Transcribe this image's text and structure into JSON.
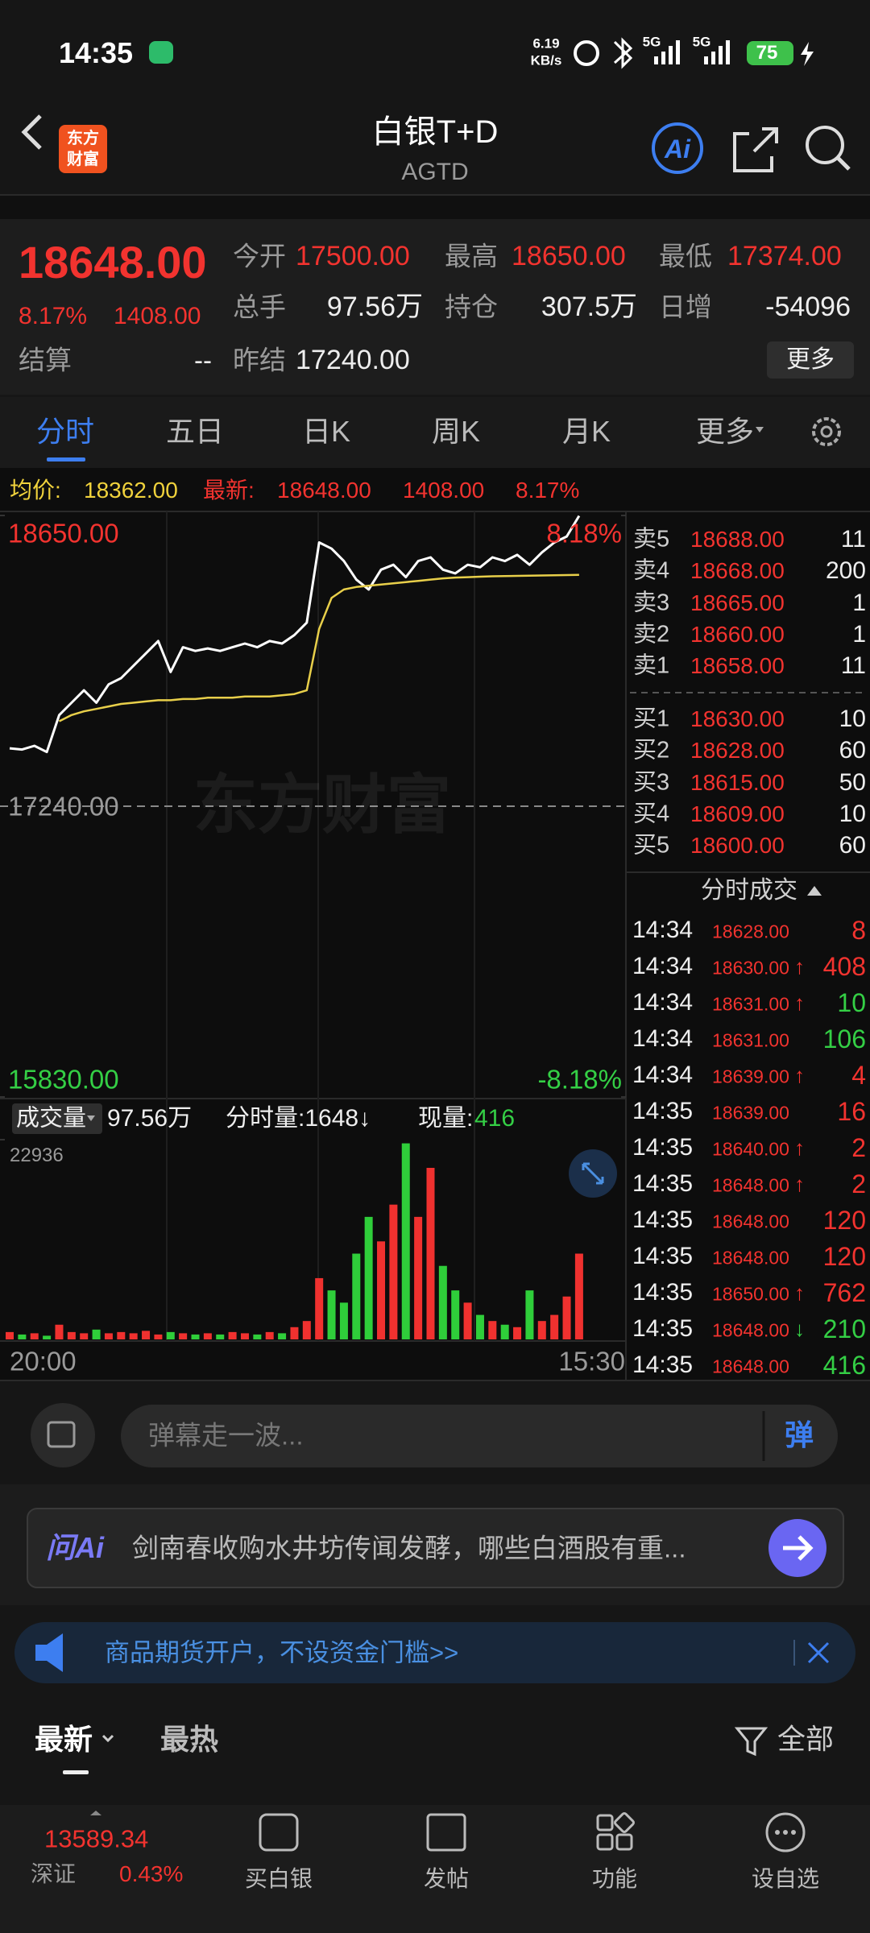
{
  "status_bar": {
    "time": "14:35",
    "net_speed": "6.19",
    "net_unit": "KB/s",
    "signal_1": "5G",
    "signal_2": "5G",
    "battery": "75"
  },
  "header": {
    "logo": [
      "东方",
      "财富"
    ],
    "title": "白银T+D",
    "code": "AGTD",
    "ai": "Ai"
  },
  "quote": {
    "price": "18648.00",
    "change_pct": "8.17%",
    "change": "1408.00",
    "settle_label": "结算",
    "settle": "--",
    "fields": [
      {
        "label": "今开",
        "value": "17500.00"
      },
      {
        "label": "最高",
        "value": "18650.00"
      },
      {
        "label": "最低",
        "value": "17374.00"
      },
      {
        "label": "总手",
        "value": "97.56万"
      },
      {
        "label": "持仓",
        "value": "307.5万"
      },
      {
        "label": "日增",
        "value": "-54096"
      },
      {
        "label": "昨结",
        "value": "17240.00"
      }
    ],
    "more": "更多"
  },
  "tabs": [
    "分时",
    "五日",
    "日K",
    "周K",
    "月K",
    "更多"
  ],
  "info_bar": {
    "avg_label": "均价:",
    "avg": "18362.00",
    "last_label": "最新:",
    "last": "18648.00",
    "change": "1408.00",
    "change_pct": "8.17%"
  },
  "chart_data": [
    {
      "type": "line",
      "watermark": "东方财富",
      "ylim": [
        15830,
        18650
      ],
      "yticks": [
        {
          "value": 15830,
          "label": "15830.00"
        },
        {
          "value": 17240,
          "label": "17240.00"
        },
        {
          "value": 18650,
          "label": "18650.00"
        }
      ],
      "y2lim": [
        -8.18,
        8.18
      ],
      "y2ticks": [
        {
          "value": 8.18,
          "label": "8.18%"
        },
        {
          "value": -8.18,
          "label": "-8.18%"
        }
      ],
      "series": [
        {
          "color": "#ffffff",
          "values": [
            17521,
            17515,
            17533,
            17503,
            17682,
            17742,
            17802,
            17742,
            17831,
            17861,
            17921,
            17981,
            18041,
            17891,
            18011,
            17993,
            18005,
            17993,
            18011,
            18029,
            18011,
            18041,
            18029,
            18070,
            18130,
            18519,
            18489,
            18429,
            18339,
            18291,
            18387,
            18411,
            18351,
            18429,
            18447,
            18387,
            18369,
            18411,
            18399,
            18447,
            18429,
            18459,
            18411,
            18471,
            18519,
            18548,
            18648,
            null,
            null,
            null
          ]
        },
        {
          "color": "#e8cf4a",
          "values": [
            null,
            null,
            null,
            null,
            17652,
            17682,
            17700,
            17712,
            17724,
            17736,
            17742,
            17748,
            17754,
            17754,
            17760,
            17760,
            17766,
            17766,
            17766,
            17772,
            17772,
            17772,
            17778,
            17784,
            17802,
            18100,
            18250,
            18291,
            18303,
            18309,
            18315,
            18321,
            18327,
            18333,
            18339,
            18345,
            18349,
            18351,
            18353,
            18355,
            18356,
            18357,
            18358,
            18359,
            18360,
            18361,
            18362,
            null,
            null,
            null
          ]
        }
      ]
    },
    {
      "type": "bar",
      "header": {
        "label": "成交量",
        "total": "97.56万",
        "minute_volume": "分时量:1648↓",
        "current_label": "现量:",
        "current": "416"
      },
      "ylim": [
        0,
        22936
      ],
      "yticks": [
        22936
      ],
      "up_color": "#f0312f",
      "down_color": "#2fce3a",
      "x_labels": [
        "20:00",
        "15:30"
      ],
      "values": [
        844,
        563,
        704,
        422,
        1688,
        844,
        704,
        1126,
        704,
        844,
        704,
        985,
        563,
        844,
        704,
        563,
        704,
        563,
        844,
        704,
        563,
        844,
        704,
        1407,
        2111,
        7035,
        5628,
        4221,
        9849,
        14070,
        11256,
        15477,
        22512,
        14070,
        19698,
        8442,
        5628,
        4221,
        2814,
        2111,
        1688,
        1407,
        5628,
        2111,
        2814,
        4925,
        9849,
        null,
        null,
        null
      ]
    }
  ],
  "order_book": {
    "asks": [
      {
        "label": "卖5",
        "price": "18688.00",
        "volume": "11"
      },
      {
        "label": "卖4",
        "price": "18668.00",
        "volume": "200"
      },
      {
        "label": "卖3",
        "price": "18665.00",
        "volume": "1"
      },
      {
        "label": "卖2",
        "price": "18660.00",
        "volume": "1"
      },
      {
        "label": "卖1",
        "price": "18658.00",
        "volume": "11"
      }
    ],
    "bids": [
      {
        "label": "买1",
        "price": "18630.00",
        "volume": "10"
      },
      {
        "label": "买2",
        "price": "18628.00",
        "volume": "60"
      },
      {
        "label": "买3",
        "price": "18615.00",
        "volume": "50"
      },
      {
        "label": "买4",
        "price": "18609.00",
        "volume": "10"
      },
      {
        "label": "买5",
        "price": "18600.00",
        "volume": "60"
      }
    ]
  },
  "trades": {
    "title": "分时成交",
    "rows": [
      {
        "time": "14:34",
        "price": "18628.00",
        "volume": "8",
        "side": "up"
      },
      {
        "time": "14:34",
        "price": "18630.00",
        "flag": "↑",
        "volume": "408",
        "side": "up"
      },
      {
        "time": "14:34",
        "price": "18631.00",
        "flag": "↑",
        "volume": "10",
        "side": "down"
      },
      {
        "time": "14:34",
        "price": "18631.00",
        "volume": "106",
        "side": "down"
      },
      {
        "time": "14:34",
        "price": "18639.00",
        "flag": "↑",
        "volume": "4",
        "side": "up"
      },
      {
        "time": "14:35",
        "price": "18639.00",
        "volume": "16",
        "side": "up"
      },
      {
        "time": "14:35",
        "price": "18640.00",
        "flag": "↑",
        "volume": "2",
        "side": "up"
      },
      {
        "time": "14:35",
        "price": "18648.00",
        "flag": "↑",
        "volume": "2",
        "side": "up"
      },
      {
        "time": "14:35",
        "price": "18648.00",
        "volume": "120",
        "side": "up"
      },
      {
        "time": "14:35",
        "price": "18648.00",
        "volume": "120",
        "side": "up"
      },
      {
        "time": "14:35",
        "price": "18650.00",
        "flag": "↑",
        "volume": "762",
        "side": "up"
      },
      {
        "time": "14:35",
        "price": "18648.00",
        "flag": "↓",
        "volume": "210",
        "side": "down"
      },
      {
        "time": "14:35",
        "price": "18648.00",
        "volume": "416",
        "side": "down"
      }
    ]
  },
  "comment": {
    "placeholder": "弹幕走一波...",
    "button": "弹"
  },
  "ai_banner": {
    "brand": "问Ai",
    "text": "剑南春收购水井坊传闻发酵，哪些白酒股有重..."
  },
  "ad": {
    "text": "商品期货开户，不设资金门槛>>"
  },
  "feed": {
    "tabs": [
      "最新",
      "最热"
    ],
    "filter": "全部"
  },
  "nav": {
    "index_value": "13589.34",
    "index_name": "深证",
    "index_change": "0.43%",
    "items": [
      "买白银",
      "发帖",
      "功能",
      "设自选"
    ]
  }
}
